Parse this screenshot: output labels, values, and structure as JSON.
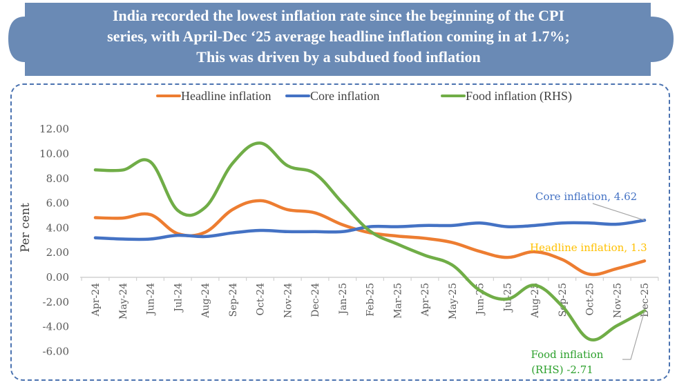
{
  "banner": {
    "lines": [
      "India recorded the lowest inflation rate since the beginning of the CPI",
      "series, with April-Dec ‘25 average headline inflation coming in at 1.7%;",
      "This was driven by a subdued food inflation"
    ],
    "color": "#6a8ab5"
  },
  "chart_data": {
    "type": "line",
    "title": "",
    "xlabel": "",
    "ylabel": "Per cent",
    "ylim": [
      -6,
      12
    ],
    "yticks": [
      "12.00",
      "10.00",
      "8.00",
      "6.00",
      "4.00",
      "2.00",
      "0.00",
      "-2.00",
      "-4.00",
      "-6.00"
    ],
    "ytick_values": [
      12,
      10,
      8,
      6,
      4,
      2,
      0,
      -2,
      -4,
      -6
    ],
    "grid": false,
    "legend_position": "top",
    "categories": [
      "Apr-24",
      "May-24",
      "Jun-24",
      "Jul-24",
      "Aug-24",
      "Sep-24",
      "Oct-24",
      "Nov-24",
      "Dec-24",
      "Jan-25",
      "Feb-25",
      "Mar-25",
      "Apr-25",
      "May-25",
      "Jun-25",
      "Jul-25",
      "Aug-25",
      "Sep-25",
      "Oct-25",
      "Nov-25",
      "Dec-25"
    ],
    "series": [
      {
        "name": "Headline inflation",
        "color": "#ed7d31",
        "values": [
          4.83,
          4.8,
          5.08,
          3.54,
          3.65,
          5.49,
          6.21,
          5.48,
          5.22,
          4.26,
          3.61,
          3.34,
          3.16,
          2.82,
          2.1,
          1.61,
          2.07,
          1.44,
          0.25,
          0.71,
          1.33
        ]
      },
      {
        "name": "Core inflation",
        "color": "#4472c4",
        "values": [
          3.2,
          3.1,
          3.1,
          3.4,
          3.3,
          3.6,
          3.8,
          3.7,
          3.7,
          3.7,
          4.1,
          4.1,
          4.2,
          4.2,
          4.4,
          4.1,
          4.2,
          4.4,
          4.4,
          4.3,
          4.62
        ]
      },
      {
        "name": "Food inflation (RHS)",
        "color": "#70ad47",
        "values": [
          8.7,
          8.69,
          9.36,
          5.42,
          5.66,
          9.24,
          10.87,
          9.04,
          8.39,
          6.02,
          3.75,
          2.69,
          1.78,
          0.99,
          -1.06,
          -1.76,
          -0.64,
          -2.33,
          -5.02,
          -3.91,
          -2.71
        ]
      }
    ],
    "annotations": [
      {
        "text": "Core inflation, 4.62",
        "color": "#4472c4",
        "series": "Core inflation",
        "category": "Dec-25"
      },
      {
        "text": "Headline inflation, 1.3",
        "color": "#ffc000",
        "series": "Headline inflation",
        "category": "Dec-25"
      },
      {
        "text_lines": [
          "Food inflation",
          "(RHS) -2.71"
        ],
        "color": "#2ca02c",
        "series": "Food inflation (RHS)",
        "category": "Dec-25"
      }
    ]
  }
}
